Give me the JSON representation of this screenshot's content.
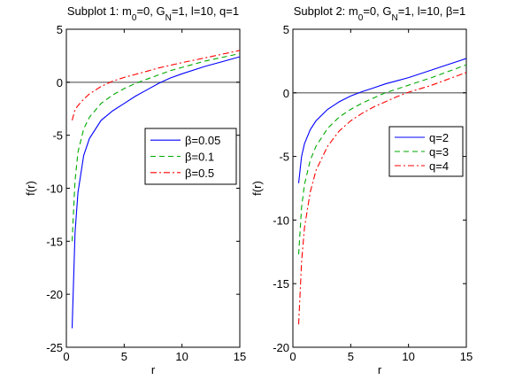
{
  "chart_data": [
    {
      "type": "line",
      "title_parts": [
        {
          "text": "Subplot 1: m",
          "sub": false
        },
        {
          "text": "0",
          "sub": true
        },
        {
          "text": "=0, G",
          "sub": false
        },
        {
          "text": "N",
          "sub": true
        },
        {
          "text": "=1, l=10, q=1",
          "sub": false
        }
      ],
      "xlabel": "r",
      "ylabel": "f(r)",
      "xlim": [
        0,
        15
      ],
      "ylim": [
        -25,
        5
      ],
      "xticks": [
        0,
        5,
        10,
        15
      ],
      "yticks": [
        -25,
        -20,
        -15,
        -10,
        -5,
        0,
        5
      ],
      "reference_line": {
        "y": 0,
        "color": "#808080"
      },
      "legend_position": "right-middle",
      "series": [
        {
          "name": "β=0.05",
          "color": "#0000ff",
          "dash": "solid",
          "x": [
            0.5,
            0.75,
            1,
            1.5,
            2,
            3,
            4,
            5,
            6,
            7,
            8,
            9,
            10,
            12,
            15
          ],
          "y": [
            -23.2,
            -14.2,
            -10.4,
            -6.9,
            -5.3,
            -3.6,
            -2.7,
            -2.0,
            -1.3,
            -0.7,
            -0.1,
            0.4,
            0.8,
            1.5,
            2.4
          ]
        },
        {
          "name": "β=0.1",
          "color": "#00aa00",
          "dash": "dashed",
          "x": [
            0.5,
            0.75,
            1,
            1.5,
            2,
            3,
            4,
            5,
            6,
            7,
            8,
            9,
            10,
            12,
            15
          ],
          "y": [
            -15.0,
            -9.3,
            -6.6,
            -4.4,
            -3.3,
            -2.0,
            -1.2,
            -0.6,
            -0.1,
            0.3,
            0.7,
            1.1,
            1.4,
            2.0,
            2.7
          ]
        },
        {
          "name": "β=0.5",
          "color": "#ff0000",
          "dash": "dashdot",
          "x": [
            0.5,
            0.75,
            1,
            1.5,
            2,
            3,
            4,
            5,
            6,
            7,
            8,
            9,
            10,
            12,
            15
          ],
          "y": [
            -3.6,
            -2.6,
            -2.2,
            -1.6,
            -1.1,
            -0.4,
            0.1,
            0.45,
            0.75,
            1.05,
            1.35,
            1.6,
            1.85,
            2.3,
            3.0
          ]
        }
      ]
    },
    {
      "type": "line",
      "title_parts": [
        {
          "text": "Subplot 2:  m",
          "sub": false
        },
        {
          "text": "0",
          "sub": true
        },
        {
          "text": "=0, G",
          "sub": false
        },
        {
          "text": "N",
          "sub": true
        },
        {
          "text": "=1, l=10, β=1",
          "sub": false
        }
      ],
      "xlabel": "r",
      "ylabel": "f(r)",
      "xlim": [
        0,
        15
      ],
      "ylim": [
        -20,
        5
      ],
      "xticks": [
        0,
        5,
        10,
        15
      ],
      "yticks": [
        -20,
        -15,
        -10,
        -5,
        0,
        5
      ],
      "reference_line": {
        "y": 0,
        "color": "#808080"
      },
      "legend_position": "top-right",
      "series": [
        {
          "name": "q=2",
          "color": "#0000ff",
          "dash": "solid",
          "x": [
            0.5,
            0.75,
            1,
            1.5,
            2,
            3,
            4,
            5,
            6,
            7,
            8,
            9,
            10,
            12,
            15
          ],
          "y": [
            -7.1,
            -5.0,
            -4.0,
            -2.9,
            -2.2,
            -1.3,
            -0.7,
            -0.25,
            0.1,
            0.4,
            0.7,
            0.95,
            1.2,
            1.8,
            2.7
          ]
        },
        {
          "name": "q=3",
          "color": "#00aa00",
          "dash": "dashed",
          "x": [
            0.5,
            0.75,
            1,
            1.5,
            2,
            3,
            4,
            5,
            6,
            7,
            8,
            9,
            10,
            12,
            15
          ],
          "y": [
            -12.7,
            -9.0,
            -7.2,
            -5.3,
            -4.2,
            -2.8,
            -1.9,
            -1.3,
            -0.8,
            -0.4,
            0.0,
            0.3,
            0.6,
            1.2,
            2.2
          ]
        },
        {
          "name": "q=4",
          "color": "#ff0000",
          "dash": "dashdot",
          "x": [
            0.5,
            0.75,
            1,
            1.5,
            2,
            3,
            4,
            5,
            6,
            7,
            8,
            9,
            10,
            12,
            15
          ],
          "y": [
            -18.2,
            -13.3,
            -10.6,
            -7.8,
            -6.1,
            -4.2,
            -3.0,
            -2.2,
            -1.6,
            -1.1,
            -0.7,
            -0.3,
            0.05,
            0.6,
            1.6
          ]
        }
      ]
    }
  ]
}
